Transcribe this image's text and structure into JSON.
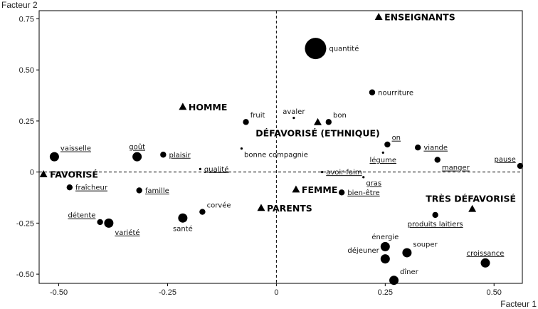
{
  "chart_data": {
    "type": "scatter",
    "title": "",
    "xlabel": "Facteur 1",
    "ylabel": "Facteur 2",
    "xlim": [
      -0.545,
      0.565
    ],
    "ylim": [
      -0.545,
      0.79
    ],
    "x_ticks": [
      -0.5,
      -0.25,
      0,
      0.25,
      0.5
    ],
    "y_ticks": [
      0.75,
      0.5,
      0.25,
      0,
      -0.25,
      -0.5
    ],
    "x_tick_labels": [
      "-0.50",
      "-0.25",
      "0",
      "0.25",
      "0.50"
    ],
    "y_tick_labels": [
      "0.75",
      "0.50",
      "0.25",
      "0",
      "-0.25",
      "-0.50"
    ],
    "grid": false,
    "reference_lines": [
      {
        "axis": "x",
        "value": 0,
        "style": "dashed"
      },
      {
        "axis": "y",
        "value": 0,
        "style": "dashed"
      }
    ],
    "colors": {
      "marks": "#000000",
      "frame": "#000000"
    },
    "words": [
      {
        "label": "quantité",
        "x": 0.09,
        "y": 0.605,
        "size": 3,
        "underline": false,
        "pos": "r"
      },
      {
        "label": "nourriture",
        "x": 0.22,
        "y": 0.39,
        "size": 1,
        "underline": false,
        "pos": "r"
      },
      {
        "label": "avaler",
        "x": 0.04,
        "y": 0.265,
        "size": 0,
        "underline": false,
        "pos": "t"
      },
      {
        "label": "bon",
        "x": 0.12,
        "y": 0.245,
        "size": 1,
        "underline": false,
        "pos": "tr"
      },
      {
        "label": "fruit",
        "x": -0.07,
        "y": 0.245,
        "size": 1,
        "underline": false,
        "pos": "tr"
      },
      {
        "label": "on",
        "x": 0.255,
        "y": 0.135,
        "size": 1,
        "underline": true,
        "pos": "tr"
      },
      {
        "label": "viande",
        "x": 0.325,
        "y": 0.12,
        "size": 1,
        "underline": true,
        "pos": "r"
      },
      {
        "label": "légume",
        "x": 0.245,
        "y": 0.095,
        "size": 0,
        "underline": true,
        "pos": "b"
      },
      {
        "label": "manger",
        "x": 0.37,
        "y": 0.06,
        "size": 1,
        "underline": true,
        "pos": "br"
      },
      {
        "label": "pause",
        "x": 0.56,
        "y": 0.03,
        "size": 1,
        "underline": true,
        "pos": "tl"
      },
      {
        "label": "bonne compagnie",
        "x": -0.08,
        "y": 0.115,
        "size": 0,
        "underline": false,
        "pos": "br"
      },
      {
        "label": "vaisselle",
        "x": -0.51,
        "y": 0.075,
        "size": 2,
        "underline": true,
        "pos": "tr"
      },
      {
        "label": "goût",
        "x": -0.32,
        "y": 0.075,
        "size": 2,
        "underline": true,
        "pos": "t"
      },
      {
        "label": "plaisir",
        "x": -0.26,
        "y": 0.085,
        "size": 1,
        "underline": true,
        "pos": "r"
      },
      {
        "label": "qualité",
        "x": -0.175,
        "y": 0.015,
        "size": 0,
        "underline": true,
        "pos": "r"
      },
      {
        "label": "avoir faim",
        "x": 0.105,
        "y": 0.0,
        "size": 0,
        "underline": true,
        "pos": "r"
      },
      {
        "label": "gras",
        "x": 0.2,
        "y": -0.025,
        "size": 0,
        "underline": true,
        "pos": "br"
      },
      {
        "label": "fraîcheur",
        "x": -0.475,
        "y": -0.075,
        "size": 1,
        "underline": true,
        "pos": "r"
      },
      {
        "label": "famille",
        "x": -0.315,
        "y": -0.09,
        "size": 1,
        "underline": true,
        "pos": "r"
      },
      {
        "label": "bien-être",
        "x": 0.15,
        "y": -0.1,
        "size": 1,
        "underline": true,
        "pos": "r"
      },
      {
        "label": "produits laitiers",
        "x": 0.365,
        "y": -0.21,
        "size": 1,
        "underline": true,
        "pos": "b"
      },
      {
        "label": "corvée",
        "x": -0.17,
        "y": -0.195,
        "size": 1,
        "underline": false,
        "pos": "tr"
      },
      {
        "label": "santé",
        "x": -0.215,
        "y": -0.225,
        "size": 2,
        "underline": false,
        "pos": "b"
      },
      {
        "label": "détente",
        "x": -0.405,
        "y": -0.245,
        "size": 1,
        "underline": true,
        "pos": "tl"
      },
      {
        "label": "variété",
        "x": -0.385,
        "y": -0.25,
        "size": 2,
        "underline": true,
        "pos": "br"
      },
      {
        "label": "énergie",
        "x": 0.25,
        "y": -0.365,
        "size": 2,
        "underline": false,
        "pos": "t"
      },
      {
        "label": "souper",
        "x": 0.3,
        "y": -0.395,
        "size": 2,
        "underline": false,
        "pos": "tr"
      },
      {
        "label": "déjeuner",
        "x": 0.25,
        "y": -0.425,
        "size": 2,
        "underline": false,
        "pos": "tl"
      },
      {
        "label": "croissance",
        "x": 0.48,
        "y": -0.445,
        "size": 2,
        "underline": true,
        "pos": "t"
      },
      {
        "label": "dîner",
        "x": 0.27,
        "y": -0.53,
        "size": 2,
        "underline": false,
        "pos": "tr"
      }
    ],
    "groups": [
      {
        "label": "ENSEIGNANTS",
        "x": 0.235,
        "y": 0.76
      },
      {
        "label": "HOMME",
        "x": -0.215,
        "y": 0.32
      },
      {
        "label": "DÉFAVORISÉ (ETHNIQUE)",
        "x": 0.095,
        "y": 0.245
      },
      {
        "label": "FAVORISÉ",
        "x": -0.535,
        "y": -0.01
      },
      {
        "label": "FEMME",
        "x": 0.045,
        "y": -0.085
      },
      {
        "label": "PARENTS",
        "x": -0.035,
        "y": -0.175
      },
      {
        "label": "TRÈS DÉFAVORISÉ",
        "x": 0.45,
        "y": -0.18
      }
    ]
  }
}
